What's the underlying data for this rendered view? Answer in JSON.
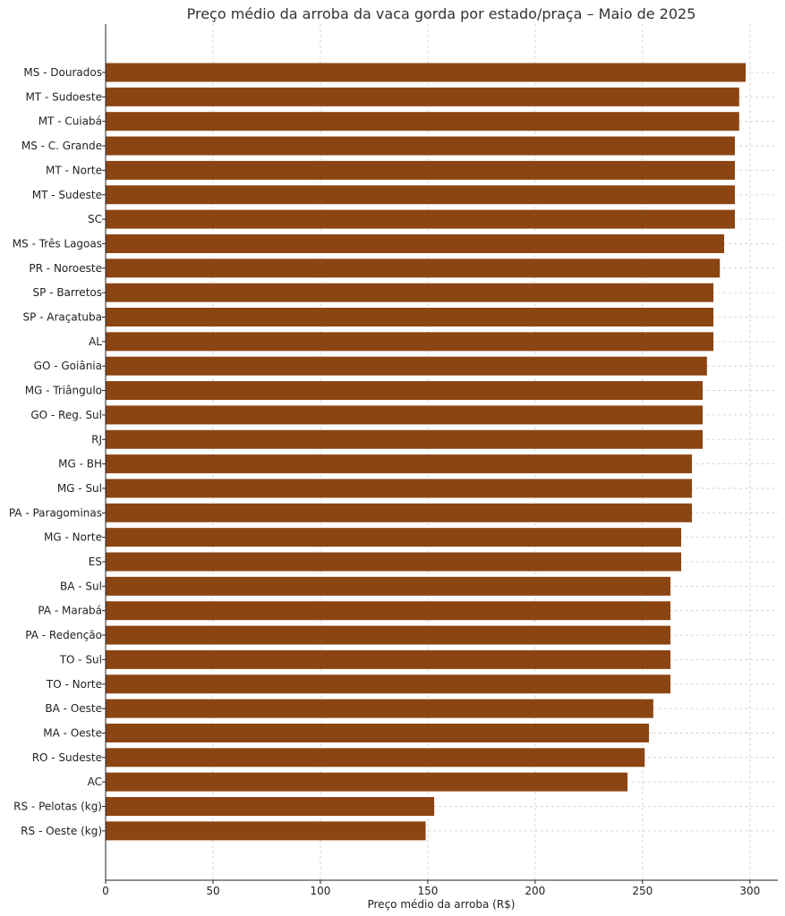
{
  "chart_data": {
    "type": "bar",
    "orientation": "horizontal",
    "title": "Preço médio da arroba da vaca gorda por estado/praça – Maio de 2025",
    "xlabel": "Preço médio da arroba (R$)",
    "ylabel": "",
    "xlim": [
      0,
      313
    ],
    "xticks": [
      0,
      50,
      100,
      150,
      200,
      250,
      300
    ],
    "grid": true,
    "bar_color": "#8B4513",
    "categories": [
      "MS - Dourados",
      "MT - Sudoeste",
      "MT - Cuiabá",
      "MS - C. Grande",
      "MT - Norte",
      "MT - Sudeste",
      "SC",
      "MS - Três Lagoas",
      "PR - Noroeste",
      "SP - Barretos",
      "SP - Araçatuba",
      "AL",
      "GO - Goiânia",
      "MG - Triângulo",
      "GO - Reg. Sul",
      "RJ",
      "MG - BH",
      "MG - Sul",
      "PA - Paragominas",
      "MG - Norte",
      "ES",
      "BA - Sul",
      "PA - Marabá",
      "PA - Redenção",
      "TO - Sul",
      "TO - Norte",
      "BA - Oeste",
      "MA - Oeste",
      "RO - Sudeste",
      "AC",
      "RS - Pelotas (kg)",
      "RS - Oeste (kg)"
    ],
    "values": [
      298,
      295,
      295,
      293,
      293,
      293,
      293,
      288,
      286,
      283,
      283,
      283,
      280,
      278,
      278,
      278,
      273,
      273,
      273,
      268,
      268,
      263,
      263,
      263,
      263,
      263,
      255,
      253,
      251,
      243,
      153,
      149
    ]
  }
}
